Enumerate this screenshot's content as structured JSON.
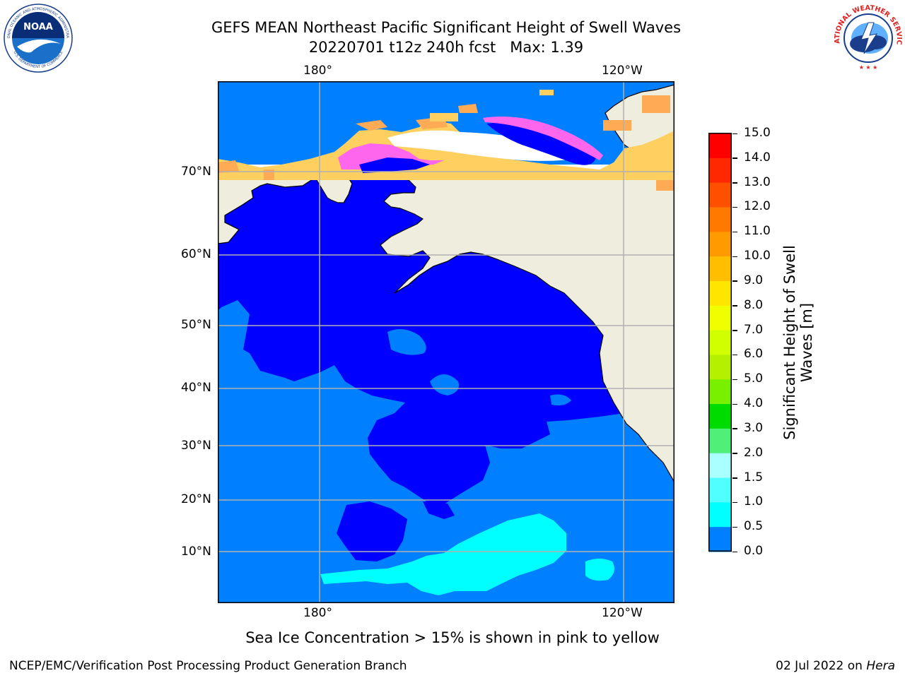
{
  "header": {
    "title_line1": "GEFS MEAN Northeast Pacific Significant Height of Swell Waves",
    "title_line2": "20220701 t12z 240h fcst   Max: 1.39"
  },
  "logos": {
    "noaa_text": "NOAA",
    "noaa_ring_top": "NATIONAL OCEANIC AND ATMOSPHERIC ADMINISTRATION",
    "noaa_ring_bottom": "U.S. DEPARTMENT OF COMMERCE",
    "nws_ring": "NATIONAL WEATHER SERVICE"
  },
  "map": {
    "top_ticks": [
      "180°",
      "120°W"
    ],
    "bottom_ticks": [
      "180°",
      "120°W"
    ],
    "left_ticks": [
      "70°N",
      "60°N",
      "50°N",
      "40°N",
      "30°N",
      "20°N",
      "10°N"
    ],
    "colors": {
      "ocean_0_05": "#0000ff",
      "ocean_05_1": "#007fff",
      "ocean_1_15": "#00ffff",
      "land": "#efedde",
      "ice_pink": "#ff66ee",
      "ice_orange": "#ffaa55",
      "ice_yellow": "#ffd060",
      "grid": "#b0b0b0"
    }
  },
  "colorbar": {
    "title_line1": "Significant Height of Swell",
    "title_line2": "Waves [m]",
    "labels": [
      "15.0",
      "14.0",
      "13.0",
      "12.0",
      "11.0",
      "10.0",
      "9.0",
      "8.0",
      "7.0",
      "6.0",
      "5.0",
      "4.0",
      "3.0",
      "2.0",
      "1.5",
      "1.0",
      "0.5",
      "0.0"
    ],
    "colors": [
      "#ff0000",
      "#ff2800",
      "#ff5000",
      "#ff7800",
      "#ff9a00",
      "#ffbe00",
      "#ffe600",
      "#f0ff00",
      "#d2ff00",
      "#b4f000",
      "#78f000",
      "#00dc00",
      "#50f078",
      "#aaffff",
      "#50ffff",
      "#00ffff",
      "#007fff",
      "#0000ff"
    ]
  },
  "footer": {
    "sea_ice_note": "Sea Ice Concentration > 15% is shown in pink to yellow",
    "branch": "NCEP/EMC/Verification Post Processing Product Generation Branch",
    "date_prefix": "02 Jul 2022 on ",
    "host": "Hera"
  }
}
